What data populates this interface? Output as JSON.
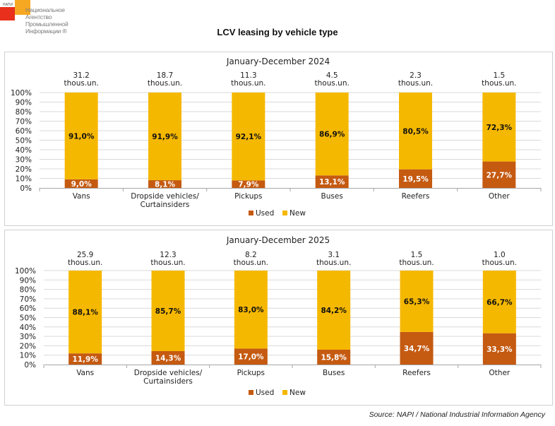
{
  "logo": {
    "tag": "НАПИ",
    "lines": [
      "Национальное",
      "Агентство",
      "Промышленной",
      "Информации ®"
    ]
  },
  "title": "LCV leasing by vehicle type",
  "source": "Source: NAPI / National Industrial Information Agency",
  "colors": {
    "used": "#c55a11",
    "new": "#f5b800"
  },
  "chart_data": [
    {
      "type": "bar",
      "stacked": true,
      "percent": true,
      "title": "January-December 2024",
      "categories": [
        "Vans",
        "Dropside vehicles/\nCurtainsiders",
        "Pickups",
        "Buses",
        "Reefers",
        "Other"
      ],
      "totals": [
        "31.2",
        "18.7",
        "11.3",
        "4.5",
        "2.3",
        "1.5"
      ],
      "total_unit": "thous.un.",
      "series": [
        {
          "name": "Used",
          "values": [
            9.0,
            8.1,
            7.9,
            13.1,
            19.5,
            27.7
          ],
          "labels": [
            "9,0%",
            "8,1%",
            "7,9%",
            "13,1%",
            "19,5%",
            "27,7%"
          ]
        },
        {
          "name": "New",
          "values": [
            91.0,
            91.9,
            92.1,
            86.9,
            80.5,
            72.3
          ],
          "labels": [
            "91,0%",
            "91,9%",
            "92,1%",
            "86,9%",
            "80,5%",
            "72,3%"
          ]
        }
      ],
      "yticks": [
        "0%",
        "10%",
        "20%",
        "30%",
        "40%",
        "50%",
        "60%",
        "70%",
        "80%",
        "90%",
        "100%"
      ],
      "ylim": [
        0,
        100
      ],
      "xlabel": "",
      "ylabel": "",
      "grid": true,
      "legend": "bottom-center"
    },
    {
      "type": "bar",
      "stacked": true,
      "percent": true,
      "title": "January-December 2025",
      "categories": [
        "Vans",
        "Dropside vehicles/\nCurtainsiders",
        "Pickups",
        "Buses",
        "Reefers",
        "Other"
      ],
      "totals": [
        "25.9",
        "12.3",
        "8.2",
        "3.1",
        "1.5",
        "1.0"
      ],
      "total_unit": "thous.un.",
      "series": [
        {
          "name": "Used",
          "values": [
            11.9,
            14.3,
            17.0,
            15.8,
            34.7,
            33.3
          ],
          "labels": [
            "11,9%",
            "14,3%",
            "17,0%",
            "15,8%",
            "34,7%",
            "33,3%"
          ]
        },
        {
          "name": "New",
          "values": [
            88.1,
            85.7,
            83.0,
            84.2,
            65.3,
            66.7
          ],
          "labels": [
            "88,1%",
            "85,7%",
            "83,0%",
            "84,2%",
            "65,3%",
            "66,7%"
          ]
        }
      ],
      "yticks": [
        "0%",
        "10%",
        "20%",
        "30%",
        "40%",
        "50%",
        "60%",
        "70%",
        "80%",
        "90%",
        "100%"
      ],
      "ylim": [
        0,
        100
      ],
      "xlabel": "",
      "ylabel": "",
      "grid": true,
      "legend": "bottom-center"
    }
  ]
}
